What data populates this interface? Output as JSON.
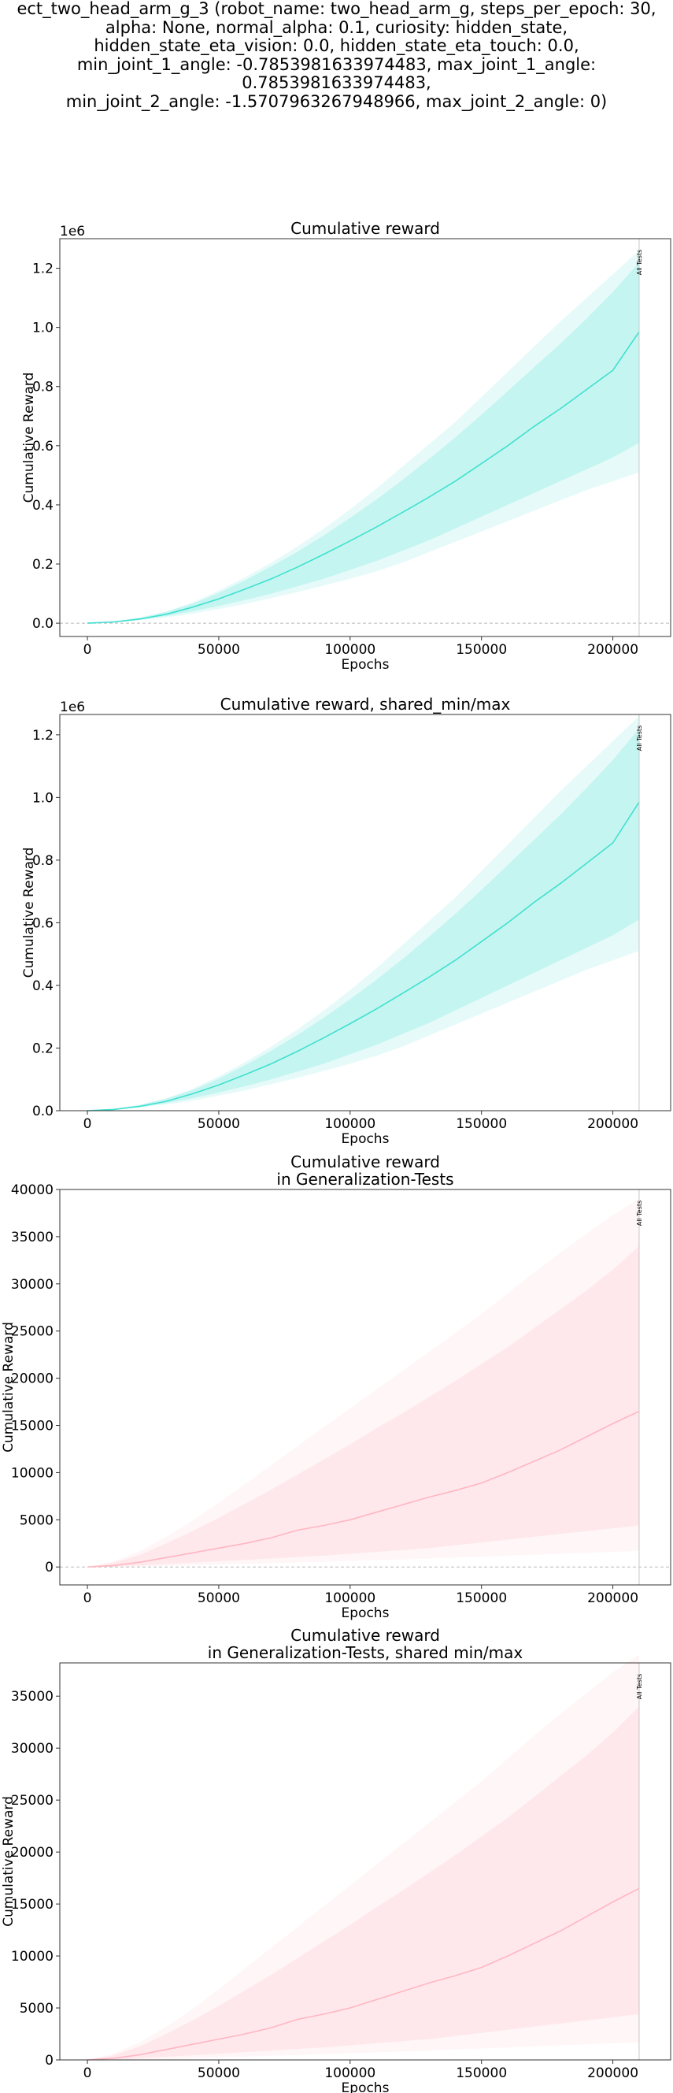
{
  "figure": {
    "suptitle": "ect_two_head_arm_g_3 (robot_name: two_head_arm_g, steps_per_epoch: 30,\nalpha: None, normal_alpha: 0.1, curiosity: hidden_state,\nhidden_state_eta_vision: 0.0, hidden_state_eta_touch: 0.0,\nmin_joint_1_angle: -0.7853981633974483, max_joint_1_angle: 0.7853981633974483,\nmin_joint_2_angle: -1.5707963267948966, max_joint_2_angle: 0)"
  },
  "chart_data": [
    {
      "type": "line",
      "title": [
        "Cumulative reward"
      ],
      "xlabel": "Epochs",
      "ylabel": "Cumulative Reward",
      "offset_label": "1e6",
      "scale": 1000000,
      "color": "#40e0d0",
      "xlim": [
        -10500,
        222000
      ],
      "ylim": [
        -45000,
        1300000
      ],
      "xticks": [
        0,
        50000,
        100000,
        150000,
        200000
      ],
      "yticks": [
        0,
        200000,
        400000,
        600000,
        800000,
        1000000,
        1200000
      ],
      "yticklabels": [
        "0.0",
        "0.2",
        "0.4",
        "0.6",
        "0.8",
        "1.0",
        "1.2"
      ],
      "zero_line": true,
      "vline": {
        "x": 210000,
        "label": "All Tests"
      },
      "x": [
        0,
        10000,
        20000,
        30000,
        40000,
        50000,
        60000,
        70000,
        80000,
        90000,
        100000,
        110000,
        120000,
        130000,
        140000,
        150000,
        160000,
        170000,
        180000,
        190000,
        200000,
        210000
      ],
      "series": [
        {
          "name": "mean",
          "values": [
            0,
            4000,
            14000,
            30000,
            54000,
            82000,
            115000,
            150000,
            190000,
            233000,
            278000,
            325000,
            375000,
            426000,
            480000,
            540000,
            600000,
            665000,
            725000,
            790000,
            855000,
            985000
          ]
        },
        {
          "name": "band_outer_lower",
          "values": [
            0,
            3000,
            10000,
            20000,
            32000,
            48000,
            65000,
            85000,
            105000,
            127000,
            150000,
            175000,
            205000,
            240000,
            275000,
            310000,
            345000,
            380000,
            415000,
            450000,
            480000,
            510000
          ]
        },
        {
          "name": "band_outer_upper",
          "values": [
            0,
            6000,
            19000,
            40000,
            70000,
            110000,
            155000,
            205000,
            260000,
            320000,
            385000,
            455000,
            530000,
            605000,
            680000,
            765000,
            850000,
            935000,
            1020000,
            1100000,
            1180000,
            1260000
          ]
        },
        {
          "name": "band_inner_lower",
          "values": [
            0,
            3500,
            12000,
            24000,
            40000,
            58000,
            78000,
            100000,
            125000,
            150000,
            180000,
            210000,
            245000,
            280000,
            320000,
            360000,
            400000,
            440000,
            480000,
            520000,
            560000,
            610000
          ]
        },
        {
          "name": "band_inner_upper",
          "values": [
            0,
            5500,
            18000,
            38000,
            66000,
            102000,
            145000,
            192000,
            242000,
            297000,
            356000,
            418000,
            485000,
            555000,
            628000,
            705000,
            785000,
            865000,
            945000,
            1030000,
            1120000,
            1220000
          ]
        }
      ]
    },
    {
      "type": "line",
      "title": [
        "Cumulative reward, shared_min/max"
      ],
      "xlabel": "Epochs",
      "ylabel": "Cumulative Reward",
      "offset_label": "1e6",
      "scale": 1000000,
      "color": "#40e0d0",
      "xlim": [
        -10500,
        222000
      ],
      "ylim": [
        0,
        1265000
      ],
      "xticks": [
        0,
        50000,
        100000,
        150000,
        200000
      ],
      "yticks": [
        0,
        200000,
        400000,
        600000,
        800000,
        1000000,
        1200000
      ],
      "yticklabels": [
        "0.0",
        "0.2",
        "0.4",
        "0.6",
        "0.8",
        "1.0",
        "1.2"
      ],
      "zero_line": false,
      "vline": {
        "x": 210000,
        "label": "All Tests"
      },
      "x": [
        0,
        10000,
        20000,
        30000,
        40000,
        50000,
        60000,
        70000,
        80000,
        90000,
        100000,
        110000,
        120000,
        130000,
        140000,
        150000,
        160000,
        170000,
        180000,
        190000,
        200000,
        210000
      ],
      "series": [
        {
          "name": "mean",
          "values": [
            0,
            4000,
            14000,
            30000,
            54000,
            82000,
            115000,
            150000,
            190000,
            233000,
            278000,
            325000,
            375000,
            426000,
            480000,
            540000,
            600000,
            665000,
            725000,
            790000,
            855000,
            985000
          ]
        },
        {
          "name": "band_outer_lower",
          "values": [
            0,
            3000,
            10000,
            20000,
            32000,
            48000,
            65000,
            85000,
            105000,
            127000,
            150000,
            175000,
            205000,
            240000,
            275000,
            310000,
            345000,
            380000,
            415000,
            450000,
            480000,
            510000
          ]
        },
        {
          "name": "band_outer_upper",
          "values": [
            0,
            6000,
            19000,
            40000,
            70000,
            110000,
            155000,
            205000,
            260000,
            320000,
            385000,
            455000,
            530000,
            605000,
            680000,
            765000,
            850000,
            935000,
            1020000,
            1100000,
            1180000,
            1260000
          ]
        },
        {
          "name": "band_inner_lower",
          "values": [
            0,
            3500,
            12000,
            24000,
            40000,
            58000,
            78000,
            100000,
            125000,
            150000,
            180000,
            210000,
            245000,
            280000,
            320000,
            360000,
            400000,
            440000,
            480000,
            520000,
            560000,
            610000
          ]
        },
        {
          "name": "band_inner_upper",
          "values": [
            0,
            5500,
            18000,
            38000,
            66000,
            102000,
            145000,
            192000,
            242000,
            297000,
            356000,
            418000,
            485000,
            555000,
            628000,
            705000,
            785000,
            865000,
            945000,
            1030000,
            1120000,
            1220000
          ]
        }
      ]
    },
    {
      "type": "line",
      "title": [
        "Cumulative reward",
        "in Generalization-Tests"
      ],
      "xlabel": "Epochs",
      "ylabel": "Cumulative Reward",
      "offset_label": "",
      "scale": 1,
      "color": "#ffb6c1",
      "xlim": [
        -10500,
        222000
      ],
      "ylim": [
        -1900,
        40000
      ],
      "xticks": [
        0,
        50000,
        100000,
        150000,
        200000
      ],
      "yticks": [
        0,
        5000,
        10000,
        15000,
        20000,
        25000,
        30000,
        35000,
        40000
      ],
      "yticklabels": [
        "0",
        "5000",
        "10000",
        "15000",
        "20000",
        "25000",
        "30000",
        "35000",
        "40000"
      ],
      "zero_line": true,
      "vline": {
        "x": 210000,
        "label": "All Tests"
      },
      "x": [
        0,
        10000,
        20000,
        30000,
        40000,
        50000,
        60000,
        70000,
        80000,
        90000,
        100000,
        110000,
        120000,
        130000,
        140000,
        150000,
        160000,
        170000,
        180000,
        190000,
        200000,
        210000
      ],
      "series": [
        {
          "name": "mean",
          "values": [
            0,
            150,
            500,
            1000,
            1500,
            2000,
            2500,
            3100,
            3900,
            4400,
            5000,
            5800,
            6600,
            7400,
            8100,
            8900,
            10000,
            11200,
            12400,
            13800,
            15200,
            16500
          ]
        },
        {
          "name": "band_outer_lower",
          "values": [
            0,
            20,
            60,
            110,
            170,
            240,
            320,
            400,
            480,
            560,
            640,
            720,
            800,
            900,
            1000,
            1100,
            1200,
            1300,
            1400,
            1500,
            1600,
            1700
          ]
        },
        {
          "name": "band_outer_upper",
          "values": [
            0,
            600,
            1700,
            3200,
            4900,
            6800,
            8800,
            10800,
            12800,
            14800,
            16800,
            18800,
            20800,
            22800,
            24800,
            26800,
            29000,
            31200,
            33300,
            35300,
            37300,
            39000
          ]
        },
        {
          "name": "band_inner_lower",
          "values": [
            0,
            50,
            150,
            300,
            450,
            600,
            750,
            900,
            1050,
            1200,
            1400,
            1600,
            1800,
            2000,
            2300,
            2600,
            2900,
            3200,
            3500,
            3800,
            4100,
            4400
          ]
        },
        {
          "name": "band_inner_upper",
          "values": [
            0,
            450,
            1300,
            2500,
            3800,
            5200,
            6700,
            8200,
            9800,
            11400,
            13000,
            14700,
            16300,
            18000,
            19700,
            21500,
            23300,
            25300,
            27300,
            29300,
            31500,
            34000
          ]
        }
      ]
    },
    {
      "type": "line",
      "title": [
        "Cumulative reward",
        "in Generalization-Tests, shared min/max"
      ],
      "xlabel": "Epochs",
      "ylabel": "Cumulative Reward",
      "offset_label": "",
      "scale": 1,
      "color": "#ffb6c1",
      "xlim": [
        -10500,
        222000
      ],
      "ylim": [
        0,
        38200
      ],
      "xticks": [
        0,
        50000,
        100000,
        150000,
        200000
      ],
      "yticks": [
        0,
        5000,
        10000,
        15000,
        20000,
        25000,
        30000,
        35000
      ],
      "yticklabels": [
        "0",
        "5000",
        "10000",
        "15000",
        "20000",
        "25000",
        "30000",
        "35000"
      ],
      "zero_line": false,
      "vline": {
        "x": 210000,
        "label": "All Tests"
      },
      "x": [
        0,
        10000,
        20000,
        30000,
        40000,
        50000,
        60000,
        70000,
        80000,
        90000,
        100000,
        110000,
        120000,
        130000,
        140000,
        150000,
        160000,
        170000,
        180000,
        190000,
        200000,
        210000
      ],
      "series": [
        {
          "name": "mean",
          "values": [
            0,
            150,
            500,
            1000,
            1500,
            2000,
            2500,
            3100,
            3900,
            4400,
            5000,
            5800,
            6600,
            7400,
            8100,
            8900,
            10000,
            11200,
            12400,
            13800,
            15200,
            16500
          ]
        },
        {
          "name": "band_outer_lower",
          "values": [
            0,
            20,
            60,
            110,
            170,
            240,
            320,
            400,
            480,
            560,
            640,
            720,
            800,
            900,
            1000,
            1100,
            1200,
            1300,
            1400,
            1500,
            1600,
            1700
          ]
        },
        {
          "name": "band_outer_upper",
          "values": [
            0,
            600,
            1700,
            3200,
            4900,
            6800,
            8800,
            10800,
            12800,
            14800,
            16800,
            18800,
            20800,
            22800,
            24800,
            26800,
            29000,
            31200,
            33300,
            35300,
            37300,
            39000
          ]
        },
        {
          "name": "band_inner_lower",
          "values": [
            0,
            50,
            150,
            300,
            450,
            600,
            750,
            900,
            1050,
            1200,
            1400,
            1600,
            1800,
            2000,
            2300,
            2600,
            2900,
            3200,
            3500,
            3800,
            4100,
            4400
          ]
        },
        {
          "name": "band_inner_upper",
          "values": [
            0,
            450,
            1300,
            2500,
            3800,
            5200,
            6700,
            8200,
            9800,
            11400,
            13000,
            14700,
            16300,
            18000,
            19700,
            21500,
            23300,
            25300,
            27300,
            29300,
            31500,
            34000
          ]
        }
      ]
    }
  ]
}
